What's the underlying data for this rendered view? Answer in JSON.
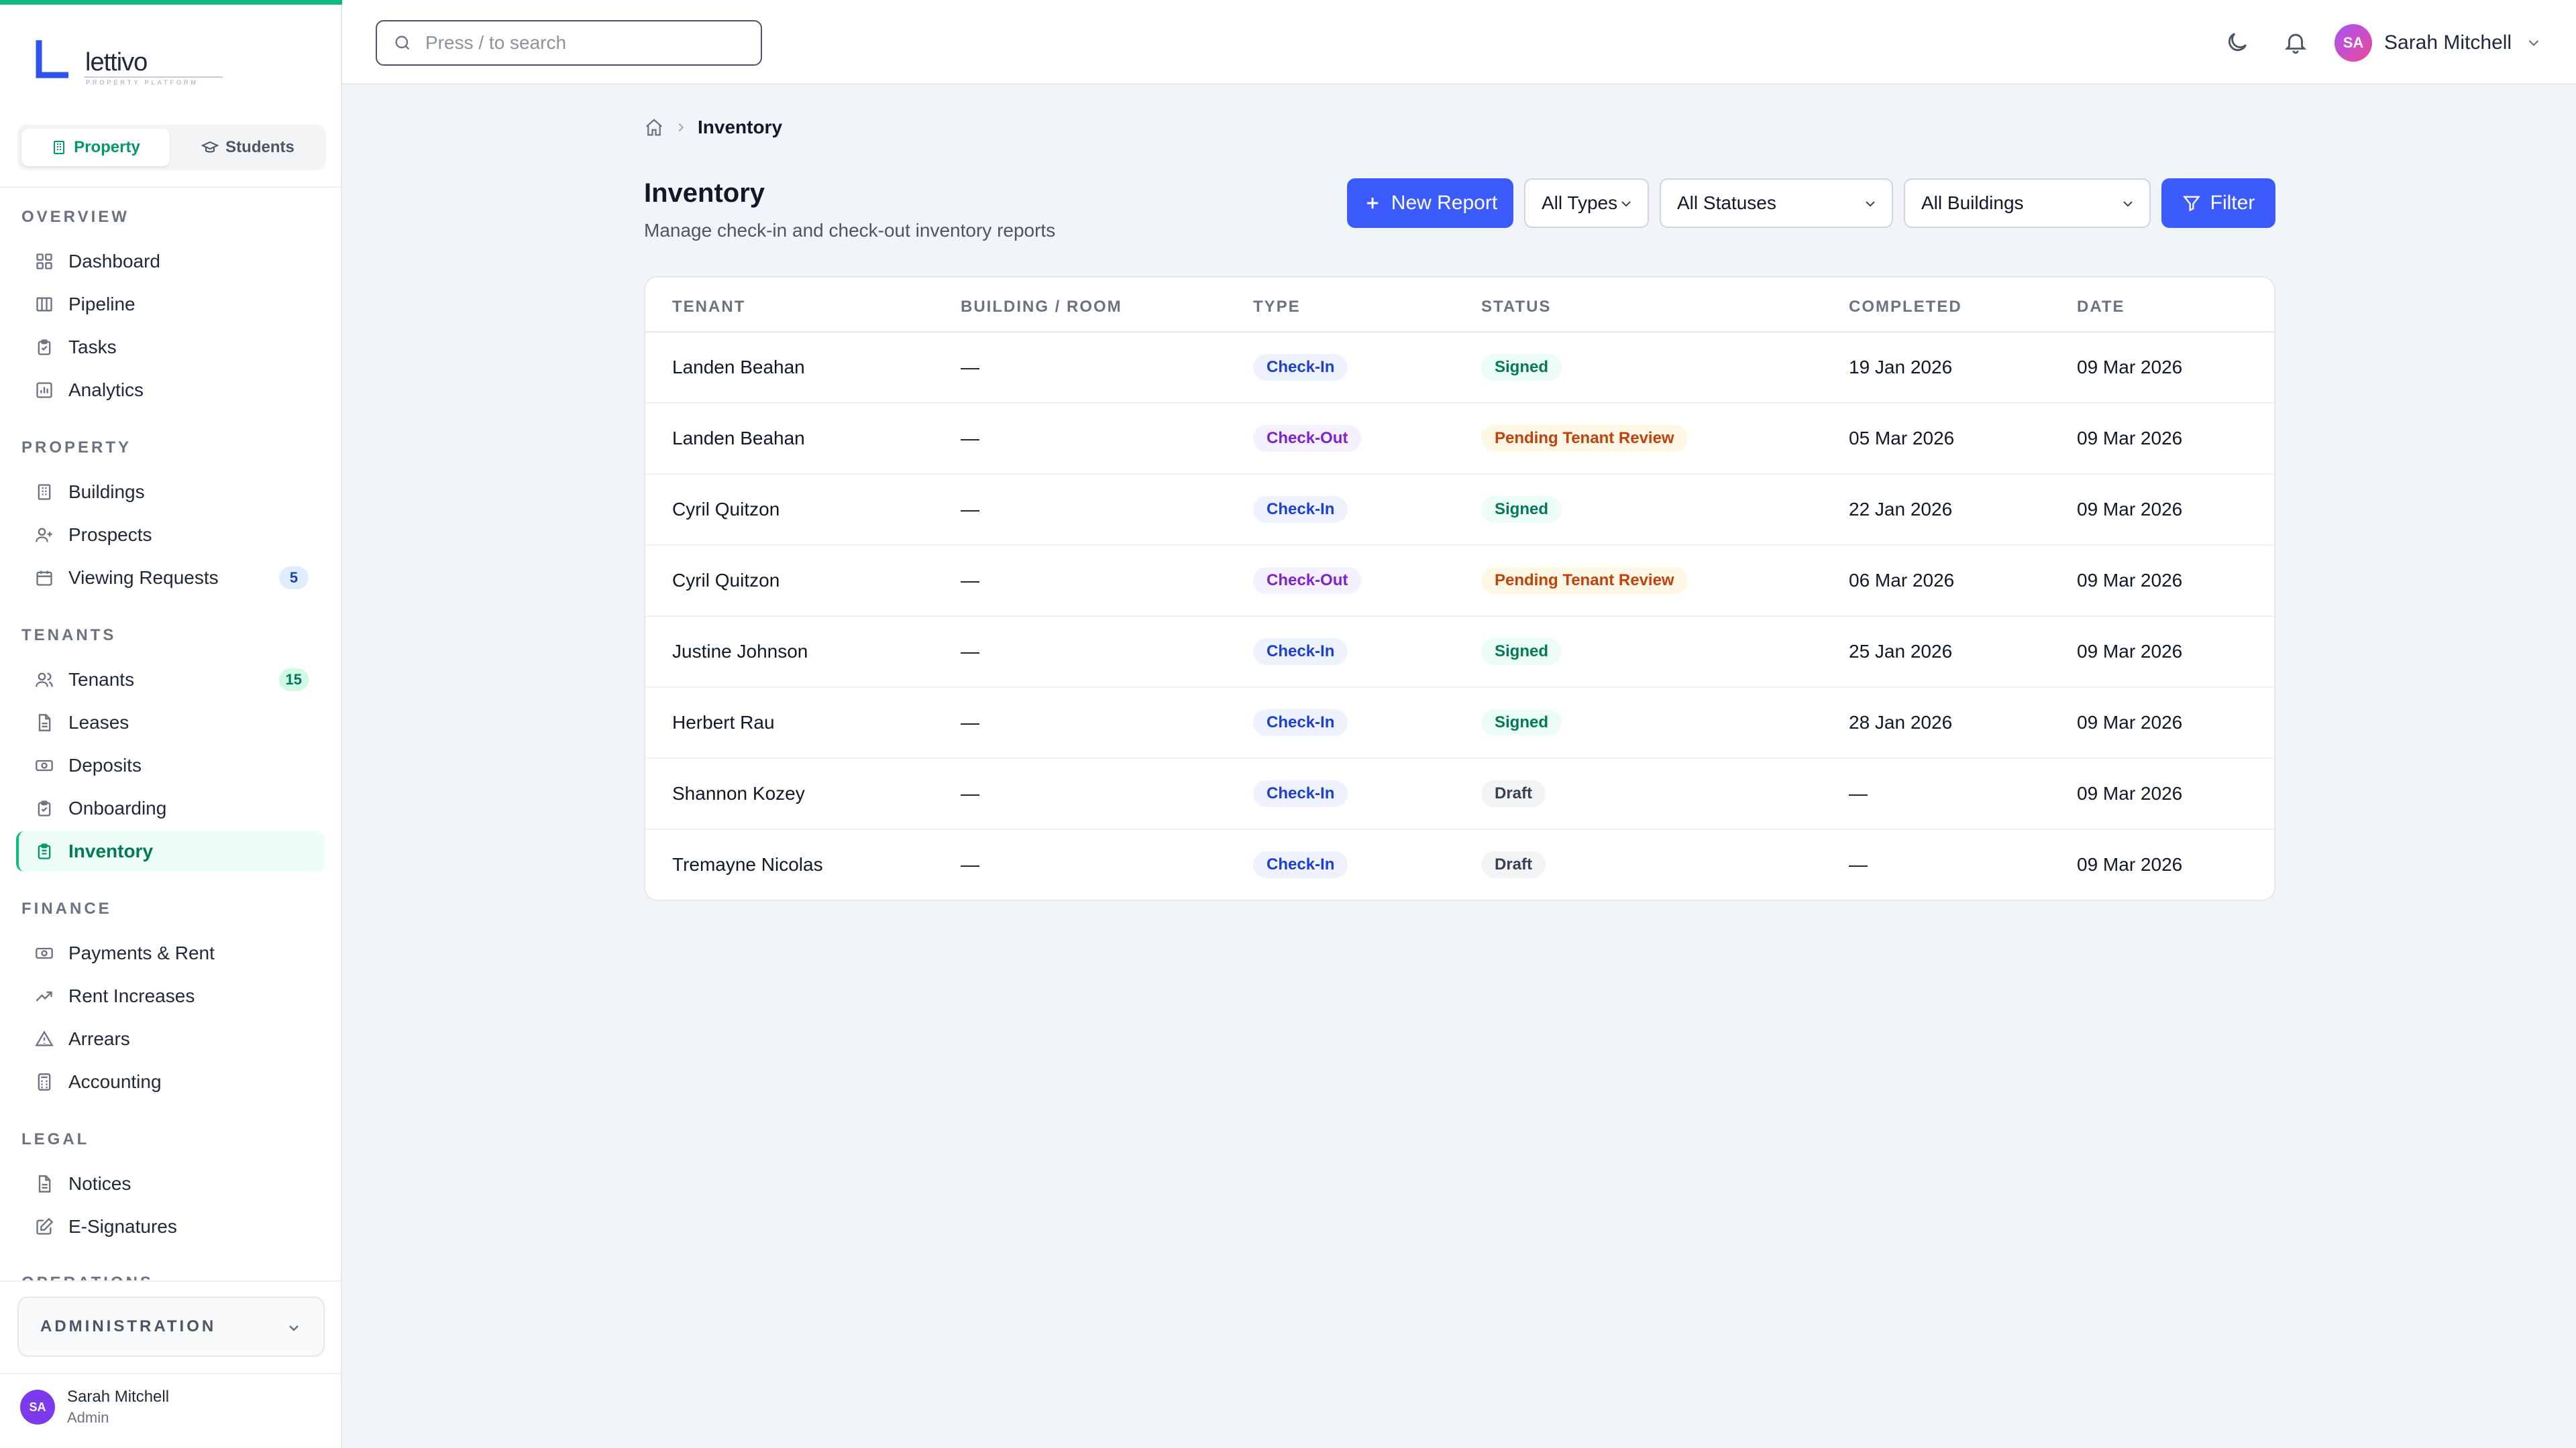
{
  "brand": {
    "name": "lettivo",
    "tagline": "PROPERTY PLATFORM"
  },
  "switcher": {
    "property": "Property",
    "students": "Students"
  },
  "nav": {
    "overview": {
      "title": "OVERVIEW",
      "items": [
        "Dashboard",
        "Pipeline",
        "Tasks",
        "Analytics"
      ]
    },
    "property": {
      "title": "PROPERTY",
      "items": [
        "Buildings",
        "Prospects",
        "Viewing Requests"
      ],
      "viewing_badge": "5"
    },
    "tenants": {
      "title": "TENANTS",
      "items": [
        "Tenants",
        "Leases",
        "Deposits",
        "Onboarding",
        "Inventory"
      ],
      "tenants_badge": "15"
    },
    "finance": {
      "title": "FINANCE",
      "items": [
        "Payments & Rent",
        "Rent Increases",
        "Arrears",
        "Accounting"
      ]
    },
    "legal": {
      "title": "LEGAL",
      "items": [
        "Notices",
        "E-Signatures"
      ]
    },
    "operations": {
      "title": "OPERATIONS"
    }
  },
  "admin_label": "ADMINISTRATION",
  "footer_user": {
    "initials": "SA",
    "name": "Sarah Mitchell",
    "role": "Admin"
  },
  "header": {
    "search_placeholder": "Press / to search",
    "user_initials": "SA",
    "user_name": "Sarah Mitchell"
  },
  "breadcrumb": {
    "current": "Inventory"
  },
  "page": {
    "title": "Inventory",
    "subtitle": "Manage check-in and check-out inventory reports"
  },
  "toolbar": {
    "new_report": "New Report",
    "type_filter": "All Types",
    "status_filter": "All Statuses",
    "building_filter": "All Buildings",
    "filter": "Filter"
  },
  "table": {
    "headers": [
      "TENANT",
      "BUILDING / ROOM",
      "TYPE",
      "STATUS",
      "COMPLETED",
      "DATE"
    ],
    "rows": [
      {
        "tenant": "Landen Beahan",
        "building": "—",
        "type": "Check-In",
        "status": "Signed",
        "completed": "19 Jan 2026",
        "date": "09 Mar 2026"
      },
      {
        "tenant": "Landen Beahan",
        "building": "—",
        "type": "Check-Out",
        "status": "Pending Tenant Review",
        "completed": "05 Mar 2026",
        "date": "09 Mar 2026"
      },
      {
        "tenant": "Cyril Quitzon",
        "building": "—",
        "type": "Check-In",
        "status": "Signed",
        "completed": "22 Jan 2026",
        "date": "09 Mar 2026"
      },
      {
        "tenant": "Cyril Quitzon",
        "building": "—",
        "type": "Check-Out",
        "status": "Pending Tenant Review",
        "completed": "06 Mar 2026",
        "date": "09 Mar 2026"
      },
      {
        "tenant": "Justine Johnson",
        "building": "—",
        "type": "Check-In",
        "status": "Signed",
        "completed": "25 Jan 2026",
        "date": "09 Mar 2026"
      },
      {
        "tenant": "Herbert Rau",
        "building": "—",
        "type": "Check-In",
        "status": "Signed",
        "completed": "28 Jan 2026",
        "date": "09 Mar 2026"
      },
      {
        "tenant": "Shannon Kozey",
        "building": "—",
        "type": "Check-In",
        "status": "Draft",
        "completed": "—",
        "date": "09 Mar 2026"
      },
      {
        "tenant": "Tremayne Nicolas",
        "building": "—",
        "type": "Check-In",
        "status": "Draft",
        "completed": "—",
        "date": "09 Mar 2026"
      }
    ]
  },
  "colors": {
    "accent": "#10b981",
    "primary_button": "#3b5bfd",
    "checkin": "#1d3fcf",
    "checkout": "#7e22ce",
    "signed": "#047857",
    "pending": "#c2410c"
  }
}
